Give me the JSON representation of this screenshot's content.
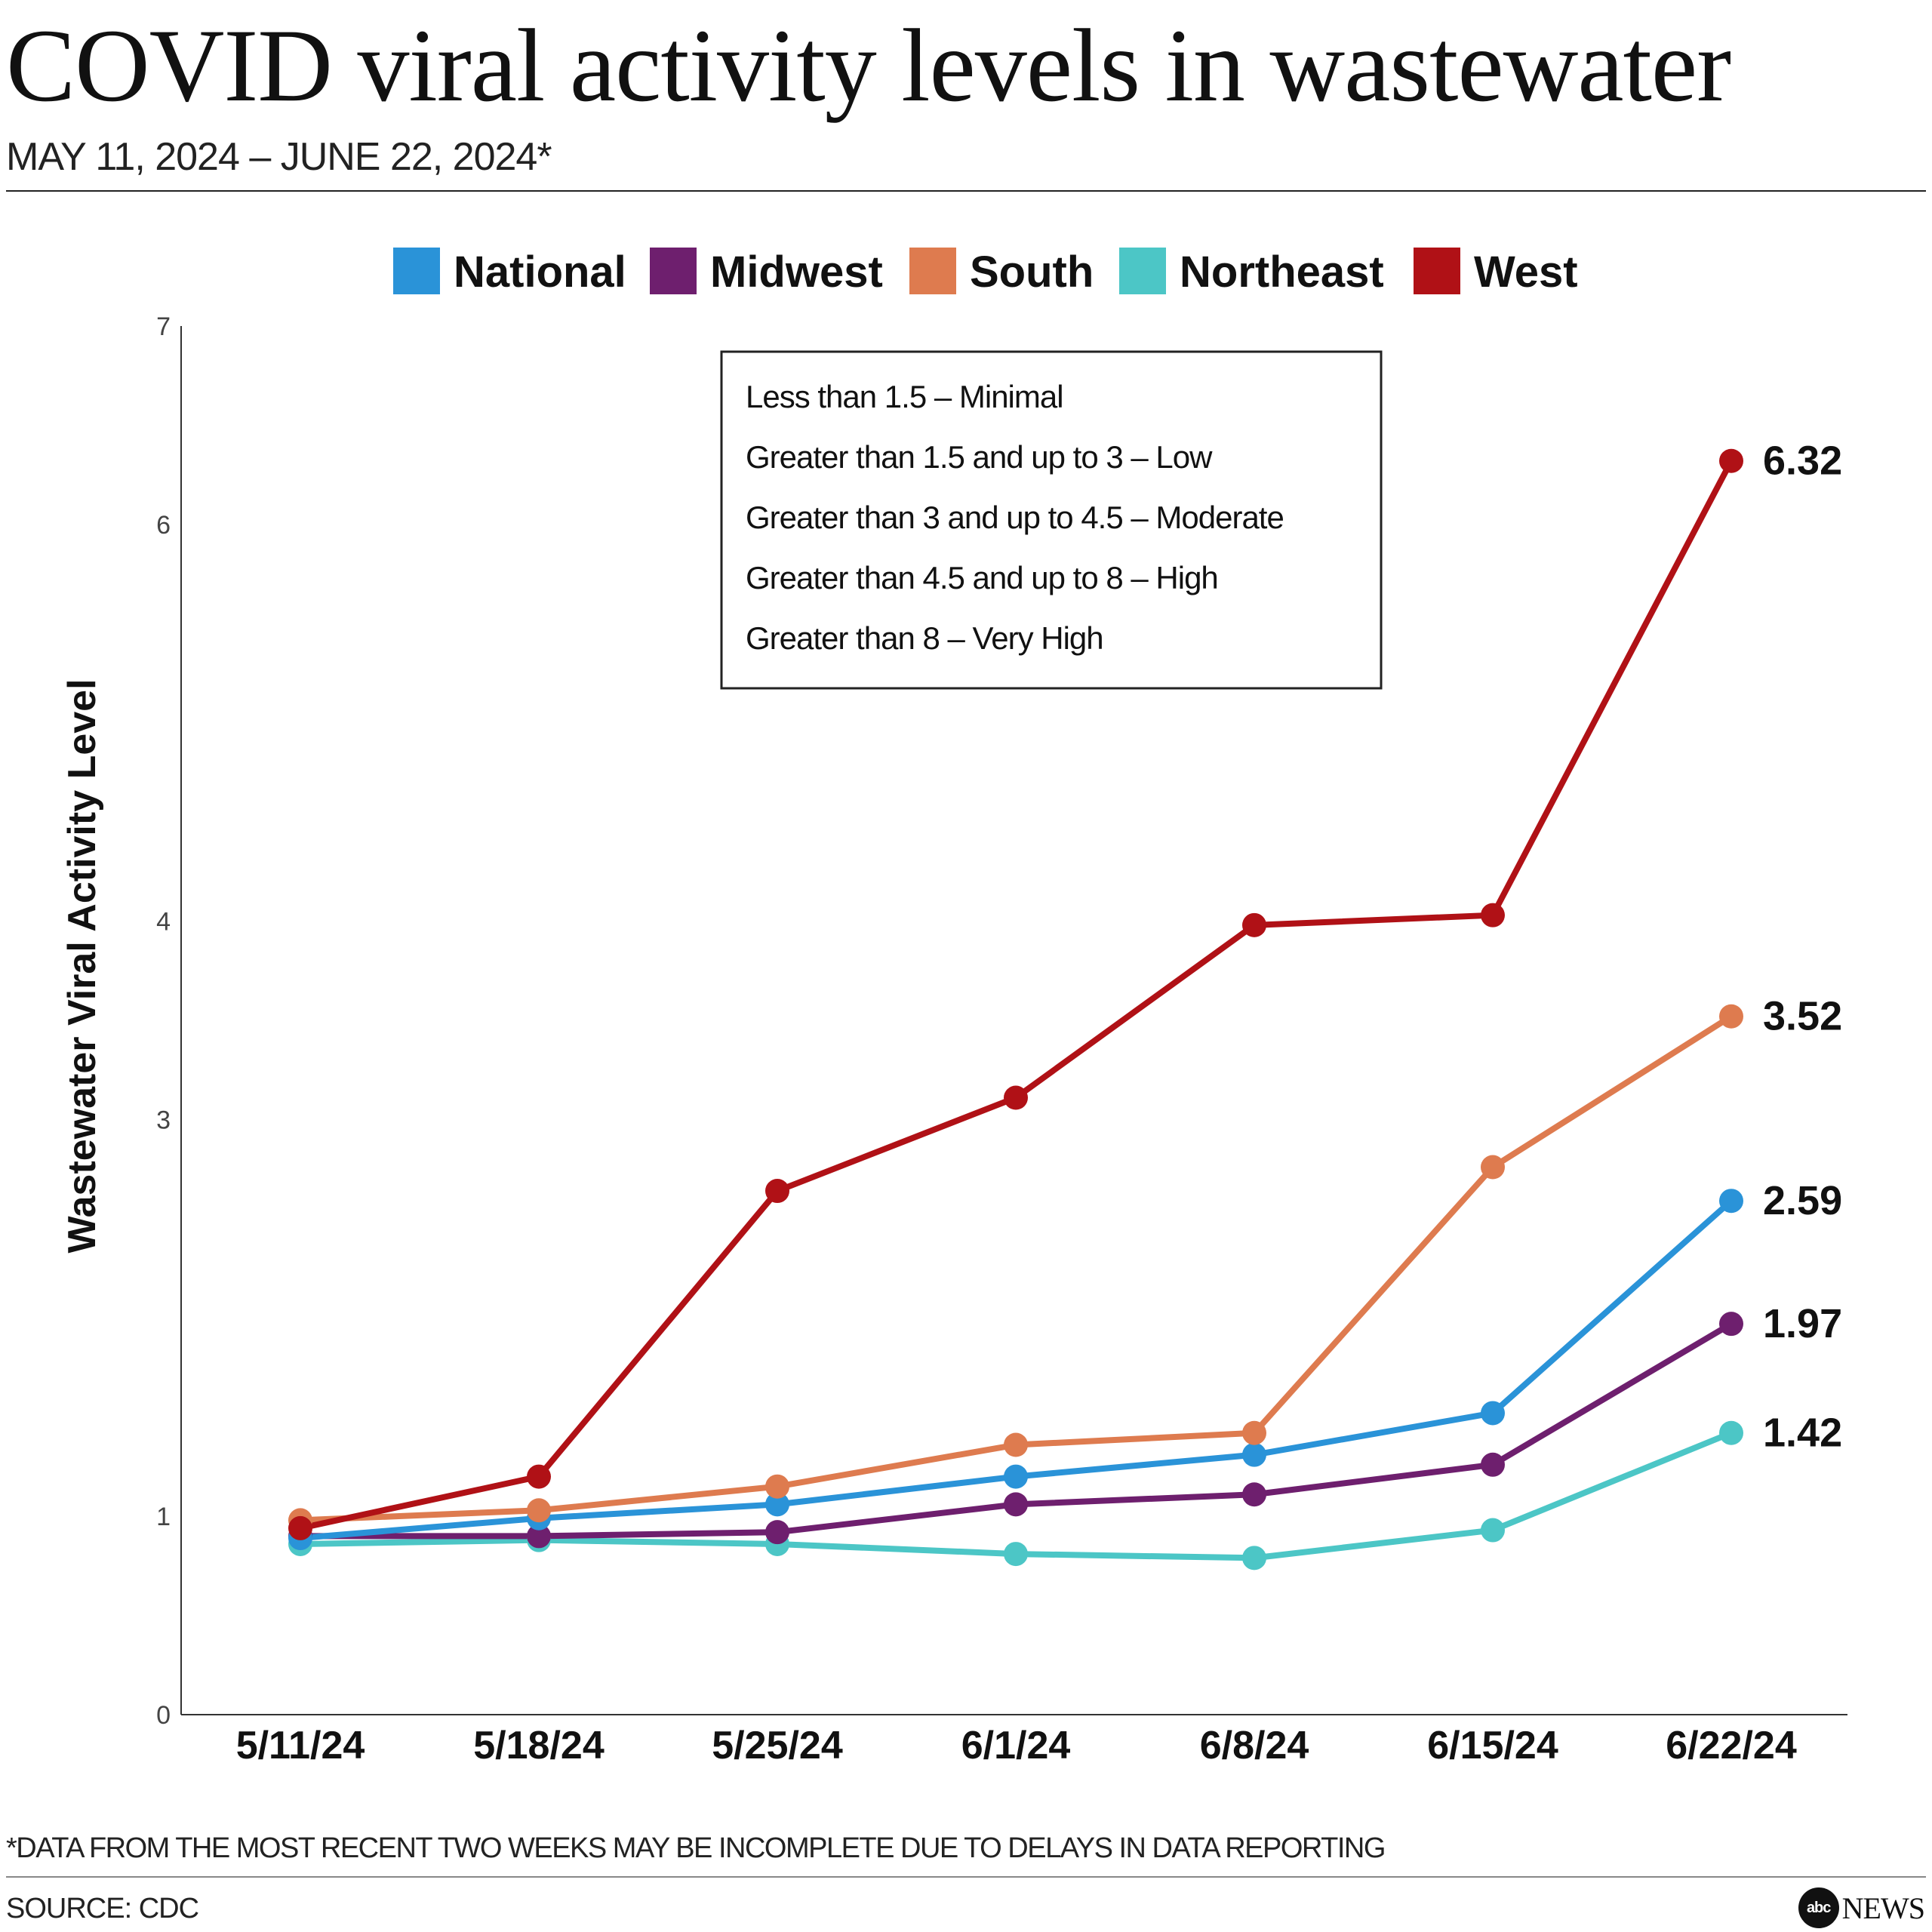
{
  "header": {
    "title": "COVID viral activity levels in wastewater",
    "subtitle": "MAY 11, 2024 – JUNE 22, 2024*"
  },
  "footer": {
    "footnote": "*DATA FROM THE MOST RECENT TWO WEEKS MAY BE INCOMPLETE DUE TO DELAYS IN DATA REPORTING",
    "source": "SOURCE: CDC",
    "brand_logo": "abc",
    "brand_name": "NEWS"
  },
  "chart_data": {
    "type": "line",
    "title": "COVID viral activity levels in wastewater",
    "xlabel": "",
    "ylabel": "Wastewater Viral Activity Level",
    "categories": [
      "5/11/24",
      "5/18/24",
      "5/25/24",
      "6/1/24",
      "6/8/24",
      "6/15/24",
      "6/22/24"
    ],
    "y_ticks": [
      0,
      1,
      3,
      4,
      6,
      7
    ],
    "legend_position": "top",
    "series": [
      {
        "name": "National",
        "color": "#2a93d8",
        "values": [
          0.89,
          0.99,
          1.06,
          1.2,
          1.31,
          1.52,
          2.59
        ],
        "end_label": "2.59"
      },
      {
        "name": "Midwest",
        "color": "#6e1f6e",
        "values": [
          0.9,
          0.9,
          0.92,
          1.06,
          1.11,
          1.26,
          1.97
        ],
        "end_label": "1.97"
      },
      {
        "name": "South",
        "color": "#de7b4f",
        "values": [
          0.98,
          1.03,
          1.15,
          1.36,
          1.42,
          2.76,
          3.52
        ],
        "end_label": "3.52"
      },
      {
        "name": "Northeast",
        "color": "#4cc6c6",
        "values": [
          0.86,
          0.88,
          0.86,
          0.81,
          0.79,
          0.93,
          1.42
        ],
        "end_label": "1.42"
      },
      {
        "name": "West",
        "color": "#b01116",
        "values": [
          0.94,
          1.2,
          2.64,
          3.11,
          3.98,
          4.03,
          6.32
        ],
        "end_label": "6.32"
      }
    ],
    "annotation_box": [
      "Less than 1.5 – Minimal",
      "Greater than 1.5 and up to 3 – Low",
      "Greater than 3 and up to 4.5 – Moderate",
      "Greater than 4.5 and up to 8 – High",
      "Greater than 8 – Very High"
    ]
  }
}
